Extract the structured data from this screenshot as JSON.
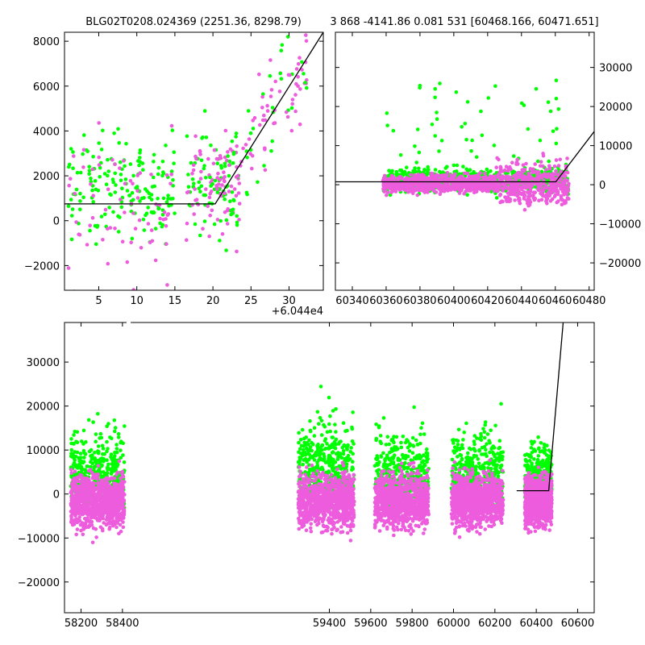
{
  "titles": {
    "left": "BLG02T0208.024369 (2251.36, 8298.79)",
    "right": "3 868 -4141.86 0.081 531 [60468.166, 60471.651]"
  },
  "colors": {
    "green": "#00ff00",
    "magenta": "#ee5cde",
    "model": "#000000"
  },
  "chart_data": [
    {
      "type": "scatter",
      "panel": "zoom",
      "x_offset_label": "+6.044e4",
      "xlim": [
        0.5,
        34.5
      ],
      "ylim": [
        -3100,
        8400
      ],
      "xticks": [
        5,
        10,
        15,
        20,
        25,
        30
      ],
      "yticks": [
        -2000,
        0,
        2000,
        4000,
        6000,
        8000
      ],
      "model": [
        [
          0.5,
          750
        ],
        [
          20.3,
          750
        ],
        [
          34.5,
          8400
        ]
      ]
    },
    {
      "type": "scatter",
      "panel": "recent",
      "xlim": [
        60330,
        60483
      ],
      "ylim": [
        -27000,
        39000
      ],
      "xticks": [
        60340,
        60360,
        60380,
        60400,
        60420,
        60440,
        60460,
        60480
      ],
      "yticks": [
        -20000,
        -10000,
        0,
        10000,
        20000,
        30000
      ],
      "model": [
        [
          60330,
          750
        ],
        [
          60460.3,
          750
        ],
        [
          60483,
          13600
        ]
      ]
    },
    {
      "type": "scatter",
      "panel": "full",
      "xlim": [
        58120,
        60680
      ],
      "ylim": [
        -27000,
        39000
      ],
      "xticks": [
        58200,
        58400,
        59400,
        59600,
        59800,
        60000,
        60200,
        60400,
        60600
      ],
      "yticks": [
        -20000,
        -10000,
        0,
        10000,
        20000,
        30000
      ],
      "model": [
        [
          60305,
          750
        ],
        [
          60460.3,
          750
        ],
        [
          60530,
          39000
        ]
      ],
      "seasons": [
        {
          "x0": 58150,
          "x1": 58410,
          "magenta_sd": 3000,
          "green_sd": 9000
        },
        {
          "x0": 59250,
          "x1": 59520,
          "magenta_sd": 3000,
          "green_sd": 11000
        },
        {
          "x0": 59620,
          "x1": 59880,
          "magenta_sd": 3000,
          "green_sd": 9000
        },
        {
          "x0": 59990,
          "x1": 60240,
          "magenta_sd": 3000,
          "green_sd": 9000
        },
        {
          "x0": 60345,
          "x1": 60475,
          "magenta_sd": 2800,
          "green_sd": 7000
        }
      ]
    }
  ]
}
